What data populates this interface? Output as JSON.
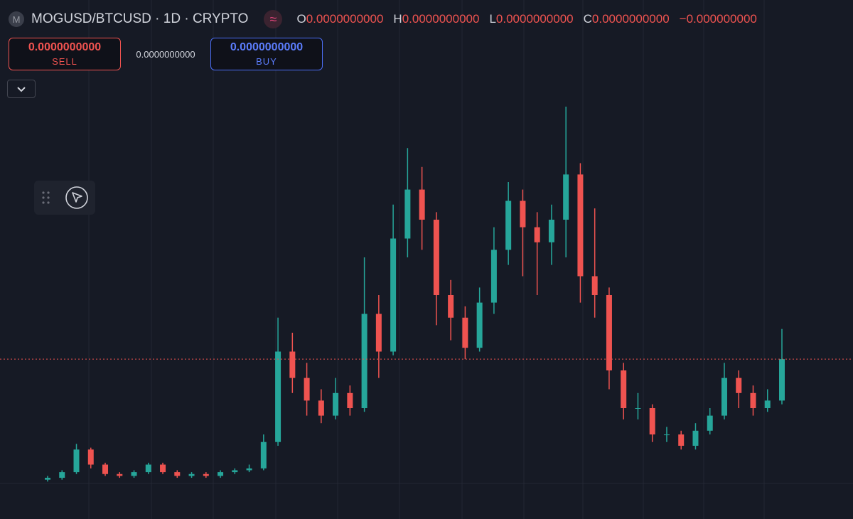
{
  "header": {
    "icon": "M",
    "symbol": "MOGUSD/BTCUSD · 1D · CRYPTO",
    "badge": "≈",
    "ohlc": [
      {
        "label": "O",
        "value": "0.0000000000"
      },
      {
        "label": "H",
        "value": "0.0000000000"
      },
      {
        "label": "L",
        "value": "0.0000000000"
      },
      {
        "label": "C",
        "value": "0.0000000000"
      }
    ],
    "change": "−0.000000000"
  },
  "trade": {
    "sell": {
      "price": "0.0000000000",
      "label": "SELL"
    },
    "spread": "0.0000000000",
    "buy": {
      "price": "0.0000000000",
      "label": "BUY"
    }
  },
  "chart_data": {
    "type": "candlestick",
    "up_color": "#26a69a",
    "down_color": "#ef5350",
    "ylim": [
      0,
      100
    ],
    "open": [
      1,
      1.5,
      3,
      9,
      5,
      2.5,
      2,
      3,
      5,
      3,
      2,
      2.5,
      2,
      3,
      3.5,
      4,
      11,
      35,
      28,
      22,
      18,
      24,
      20,
      45,
      35,
      65,
      78,
      70,
      50,
      44,
      36,
      48,
      62,
      75,
      68,
      64,
      70,
      82,
      55,
      50,
      30,
      20,
      20,
      13,
      13,
      10,
      14,
      18,
      28,
      24,
      20,
      22
    ],
    "high": [
      2,
      3.5,
      10.5,
      9.5,
      5.5,
      3,
      3.5,
      5.5,
      5.5,
      3.5,
      3,
      3,
      3.5,
      4,
      5,
      13,
      44,
      40,
      32,
      25,
      28,
      26,
      60,
      50,
      74,
      89,
      84,
      72,
      54,
      47,
      52,
      68,
      80,
      78,
      72,
      74,
      100,
      85,
      73,
      52,
      32,
      24,
      21,
      15,
      14,
      16,
      20,
      32,
      30,
      26,
      25,
      41
    ],
    "low": [
      0.5,
      1,
      2.5,
      4,
      2,
      1.5,
      1.5,
      2.5,
      2.5,
      1.5,
      1.5,
      1.5,
      1.5,
      2.5,
      3,
      3.5,
      10,
      24,
      18,
      16,
      17,
      18,
      19,
      28,
      34,
      60,
      62,
      42,
      38,
      33,
      35,
      45,
      58,
      55,
      50,
      58,
      60,
      48,
      44,
      25,
      17,
      17,
      11,
      11,
      9,
      9,
      13,
      17,
      20,
      18,
      19,
      21
    ],
    "close": [
      1.5,
      3,
      9,
      5,
      2.5,
      2,
      3,
      5,
      3,
      2,
      2.5,
      2,
      3,
      3.5,
      4,
      11,
      35,
      28,
      22,
      18,
      24,
      20,
      45,
      35,
      65,
      78,
      70,
      50,
      44,
      36,
      48,
      62,
      75,
      68,
      64,
      70,
      82,
      55,
      50,
      30,
      20,
      20,
      13,
      13,
      10,
      14,
      18,
      28,
      24,
      20,
      22,
      33
    ]
  }
}
